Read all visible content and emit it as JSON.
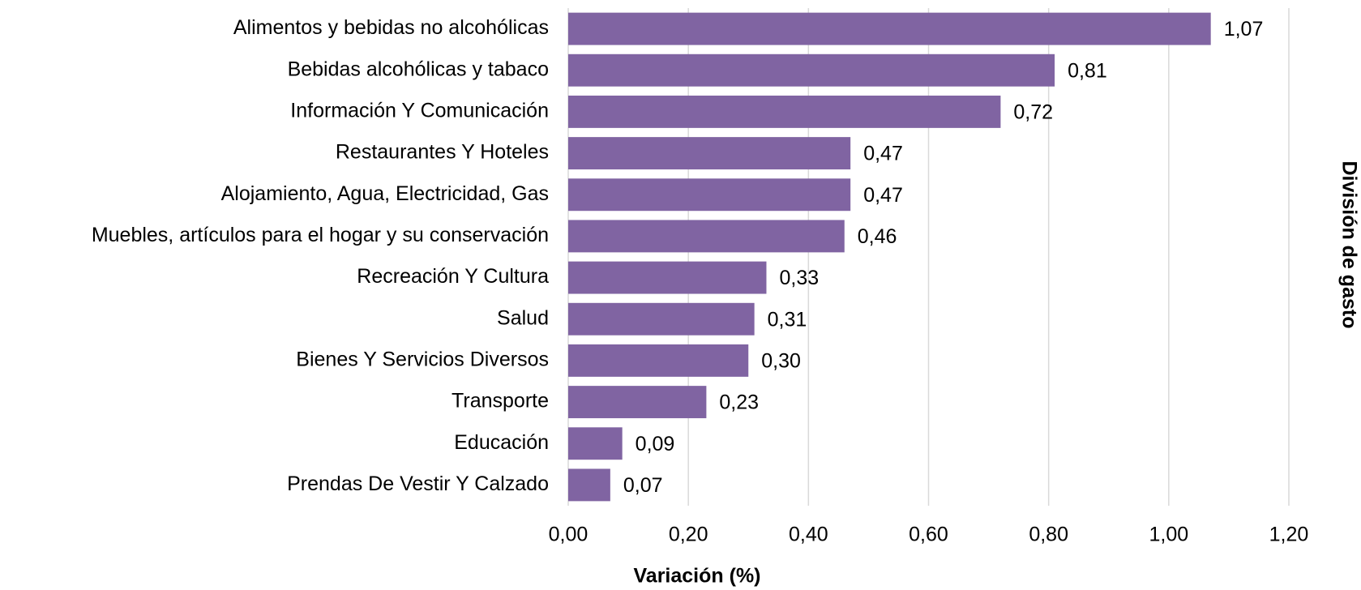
{
  "chart_data": {
    "type": "barh",
    "categories": [
      "Alimentos y bebidas no alcohólicas",
      "Bebidas alcohólicas y tabaco",
      "Información Y Comunicación",
      "Restaurantes Y Hoteles",
      "Alojamiento, Agua, Electricidad, Gas",
      "Muebles, artículos para el hogar y su conservación",
      "Recreación Y Cultura",
      "Salud",
      "Bienes Y Servicios Diversos",
      "Transporte",
      "Educación",
      "Prendas De Vestir Y Calzado"
    ],
    "values": [
      1.07,
      0.81,
      0.72,
      0.47,
      0.47,
      0.46,
      0.33,
      0.31,
      0.3,
      0.23,
      0.09,
      0.07
    ],
    "value_labels": [
      "1,07",
      "0,81",
      "0,72",
      "0,47",
      "0,47",
      "0,46",
      "0,33",
      "0,31",
      "0,30",
      "0,23",
      "0,09",
      "0,07"
    ],
    "color": "#8064a2",
    "xlim": [
      0,
      1.2
    ],
    "xticks": [
      {
        "value": 0,
        "label": "0,00"
      },
      {
        "value": 0.2,
        "label": "0,20"
      },
      {
        "value": 0.4,
        "label": "0,40"
      },
      {
        "value": 0.6,
        "label": "0,60"
      },
      {
        "value": 0.8,
        "label": "0,80"
      },
      {
        "value": 1.0,
        "label": "1,00"
      },
      {
        "value": 1.2,
        "label": "1,20"
      }
    ],
    "x_label": "Variación (%)",
    "y_label": "División de gasto",
    "grid": true
  }
}
